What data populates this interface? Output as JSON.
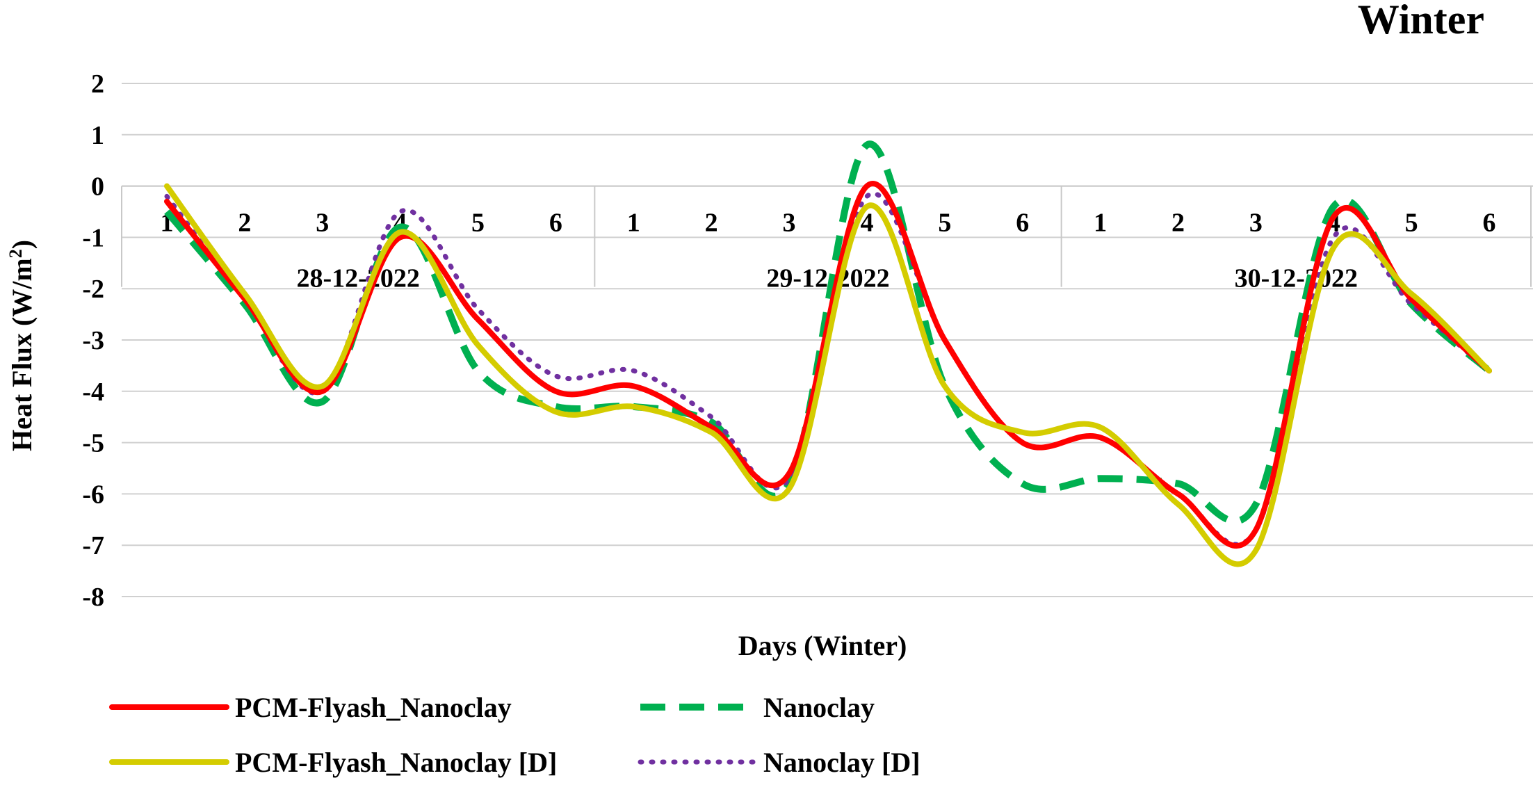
{
  "chart_data": {
    "type": "line",
    "title": "Winter",
    "xlabel": "Days (Winter)",
    "ylabel_main": "Heat Flux (W/m",
    "ylabel_sup": "2",
    "ylabel_end": ")",
    "ylim": [
      -8,
      2
    ],
    "yticks": [
      2,
      1,
      0,
      -1,
      -2,
      -3,
      -4,
      -5,
      -6,
      -7,
      -8
    ],
    "grid": true,
    "legend_position": "bottom",
    "categories": [
      "1",
      "2",
      "3",
      "4",
      "5",
      "6",
      "1",
      "2",
      "3",
      "4",
      "5",
      "6",
      "1",
      "2",
      "3",
      "4",
      "5",
      "6"
    ],
    "groups": [
      "28-12-2022",
      "29-12-2022",
      "30-12-2022"
    ],
    "series": [
      {
        "name": "PCM-Flyash_Nanoclay",
        "color": "#ff0000",
        "style": "solid",
        "values": [
          -0.3,
          -2.2,
          -4.0,
          -1.0,
          -2.6,
          -4.0,
          -3.9,
          -4.7,
          -5.6,
          0.0,
          -3.0,
          -5.0,
          -4.9,
          -6.0,
          -6.7,
          -0.6,
          -2.2,
          -3.6
        ]
      },
      {
        "name": "Nanoclay",
        "color": "#00b050",
        "style": "dashed",
        "values": [
          -0.5,
          -2.3,
          -4.2,
          -0.8,
          -3.6,
          -4.3,
          -4.3,
          -4.6,
          -5.8,
          0.8,
          -3.9,
          -5.8,
          -5.7,
          -5.8,
          -6.2,
          -0.4,
          -2.3,
          -3.6
        ]
      },
      {
        "name": "PCM-Flyash_Nanoclay [D]",
        "color": "#d4cc00",
        "style": "solid",
        "values": [
          0.0,
          -2.1,
          -3.9,
          -0.9,
          -3.1,
          -4.4,
          -4.3,
          -4.8,
          -5.9,
          -0.4,
          -3.9,
          -4.8,
          -4.7,
          -6.2,
          -7.1,
          -1.2,
          -2.1,
          -3.6
        ]
      },
      {
        "name": "Nanoclay [D]",
        "color": "#7030a0",
        "style": "dotted",
        "values": [
          -0.2,
          -2.2,
          -4.0,
          -0.5,
          -2.4,
          -3.7,
          -3.6,
          -4.5,
          -5.7,
          -0.2,
          -3.0,
          -5.0,
          -4.9,
          -6.0,
          -6.7,
          -1.0,
          -2.3,
          -3.6
        ]
      }
    ]
  }
}
